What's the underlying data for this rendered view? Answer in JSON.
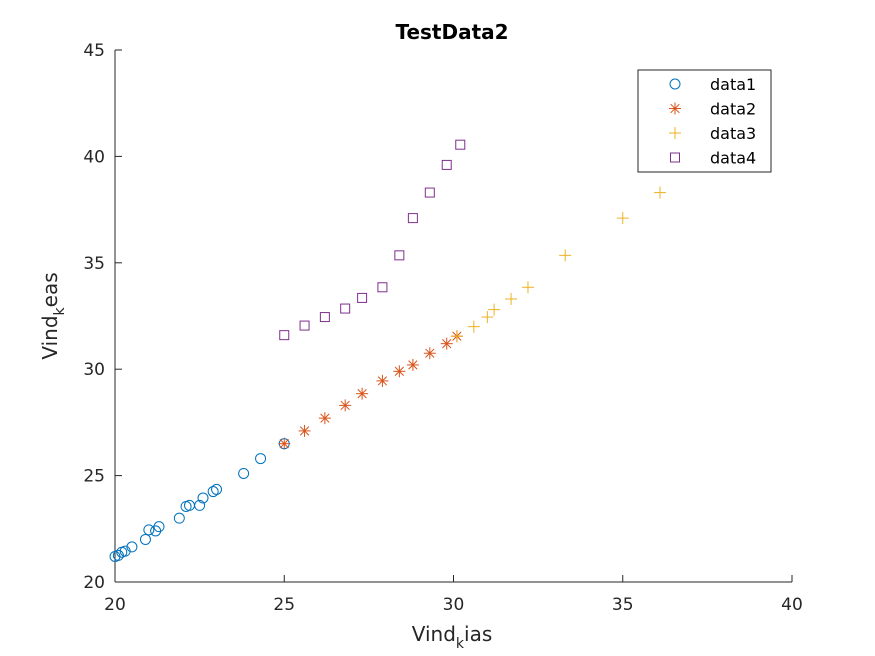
{
  "chart_data": {
    "type": "scatter",
    "title": "TestData2",
    "xlabel": {
      "main": "Vind",
      "sub": "k",
      "rest": "ias"
    },
    "ylabel": {
      "main": "Vind",
      "sub": "k",
      "rest": "eas"
    },
    "xlim": [
      20,
      40
    ],
    "ylim": [
      20,
      45
    ],
    "xticks": [
      20,
      25,
      30,
      35,
      40
    ],
    "yticks": [
      20,
      25,
      30,
      35,
      40,
      45
    ],
    "grid": false,
    "legend_position": "top-right",
    "series": [
      {
        "name": "data1",
        "marker": "circle",
        "color": "#0072BD",
        "points": [
          [
            20.0,
            21.2
          ],
          [
            20.1,
            21.25
          ],
          [
            20.2,
            21.4
          ],
          [
            20.3,
            21.45
          ],
          [
            20.5,
            21.65
          ],
          [
            20.9,
            22.0
          ],
          [
            21.0,
            22.45
          ],
          [
            21.2,
            22.4
          ],
          [
            21.3,
            22.6
          ],
          [
            21.9,
            23.0
          ],
          [
            22.1,
            23.55
          ],
          [
            22.2,
            23.6
          ],
          [
            22.5,
            23.6
          ],
          [
            22.6,
            23.95
          ],
          [
            22.9,
            24.25
          ],
          [
            23.0,
            24.35
          ],
          [
            23.8,
            25.1
          ],
          [
            24.3,
            25.8
          ],
          [
            25.0,
            26.5
          ]
        ]
      },
      {
        "name": "data2",
        "marker": "asterisk",
        "color": "#D95319",
        "points": [
          [
            25.0,
            26.5
          ],
          [
            25.6,
            27.1
          ],
          [
            26.2,
            27.7
          ],
          [
            26.8,
            28.3
          ],
          [
            27.3,
            28.85
          ],
          [
            27.9,
            29.45
          ],
          [
            28.4,
            29.9
          ],
          [
            28.8,
            30.2
          ],
          [
            29.3,
            30.75
          ],
          [
            29.8,
            31.2
          ],
          [
            30.1,
            31.55
          ]
        ]
      },
      {
        "name": "data3",
        "marker": "plus",
        "color": "#EDB120",
        "points": [
          [
            30.1,
            31.55
          ],
          [
            30.6,
            32.0
          ],
          [
            31.0,
            32.45
          ],
          [
            31.2,
            32.8
          ],
          [
            31.7,
            33.3
          ],
          [
            32.2,
            33.85
          ],
          [
            33.3,
            35.35
          ],
          [
            35.0,
            37.1
          ],
          [
            36.1,
            38.3
          ]
        ]
      },
      {
        "name": "data4",
        "marker": "square",
        "color": "#7E2F8E",
        "points": [
          [
            25.0,
            31.6
          ],
          [
            25.6,
            32.05
          ],
          [
            26.2,
            32.45
          ],
          [
            26.8,
            32.85
          ],
          [
            27.3,
            33.35
          ],
          [
            27.9,
            33.85
          ],
          [
            28.4,
            35.35
          ],
          [
            28.8,
            37.1
          ],
          [
            29.3,
            38.3
          ],
          [
            29.8,
            39.6
          ],
          [
            30.2,
            40.55
          ]
        ]
      }
    ]
  }
}
